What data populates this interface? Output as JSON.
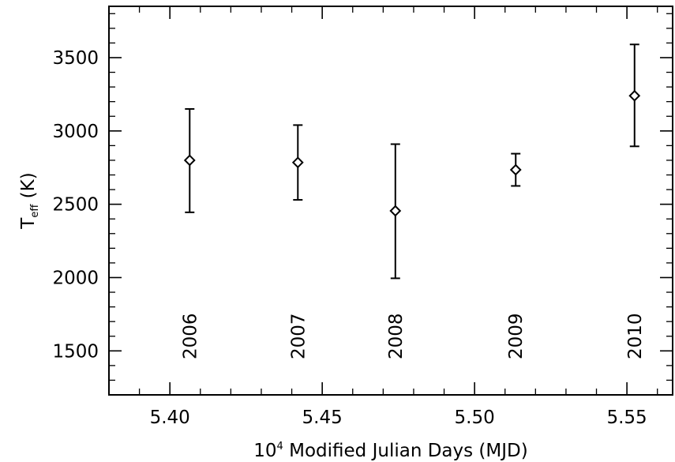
{
  "chart_data": {
    "type": "scatter",
    "title": "",
    "xlabel": {
      "prefix": "10",
      "sup": "4",
      "rest": " Modified Julian Days (MJD)"
    },
    "ylabel": {
      "main": "T",
      "sub": "eff",
      "rest": " (K)"
    },
    "xlim": [
      5.38,
      5.565
    ],
    "ylim": [
      1200,
      3850
    ],
    "x_ticks": [
      5.4,
      5.45,
      5.5,
      5.55
    ],
    "x_tick_labels": [
      "5.40",
      "5.45",
      "5.50",
      "5.55"
    ],
    "y_ticks": [
      1500,
      2000,
      2500,
      3000,
      3500
    ],
    "y_tick_labels": [
      "1500",
      "2000",
      "2500",
      "3000",
      "3500"
    ],
    "grid": false,
    "marker": "diamond",
    "points": [
      {
        "x": 5.4065,
        "y": 2800,
        "yerr_low": 2445,
        "yerr_high": 3150,
        "year": "2006"
      },
      {
        "x": 5.442,
        "y": 2785,
        "yerr_low": 2530,
        "yerr_high": 3040,
        "year": "2007"
      },
      {
        "x": 5.474,
        "y": 2455,
        "yerr_low": 1995,
        "yerr_high": 2910,
        "year": "2008"
      },
      {
        "x": 5.5135,
        "y": 2735,
        "yerr_low": 2625,
        "yerr_high": 2845,
        "year": "2009"
      },
      {
        "x": 5.5525,
        "y": 3240,
        "yerr_low": 2895,
        "yerr_high": 3590,
        "year": "2010"
      }
    ],
    "year_label_y": 1600
  }
}
